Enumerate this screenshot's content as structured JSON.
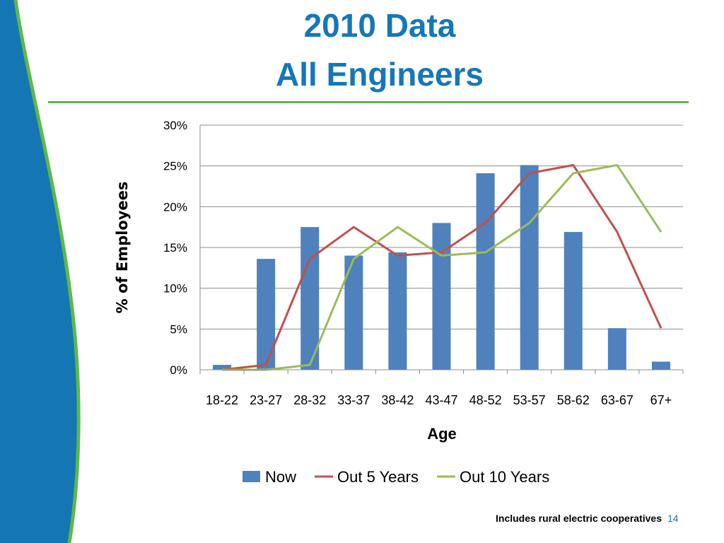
{
  "slide": {
    "title_line1": "2010 Data",
    "title_line2": "All Engineers",
    "footnote": "Includes rural electric cooperatives",
    "page_number": "14"
  },
  "colors": {
    "title": "#1677B8",
    "accent_rule": "#5DB84A",
    "bar_now": "#4F81BD",
    "line_5yr": "#C0504D",
    "line_10yr": "#9BBB59"
  },
  "chart_data": {
    "type": "bar",
    "title": "",
    "xlabel": "Age",
    "ylabel": "% of Employees",
    "categories": [
      "18-22",
      "23-27",
      "28-32",
      "33-37",
      "38-42",
      "43-47",
      "48-52",
      "53-57",
      "58-62",
      "63-67",
      "67+"
    ],
    "y_ticks": [
      "0%",
      "5%",
      "10%",
      "15%",
      "20%",
      "25%",
      "30%"
    ],
    "ylim": [
      0,
      30
    ],
    "grid": true,
    "legend_position": "bottom",
    "series": [
      {
        "name": "Now",
        "type": "bar",
        "values": [
          0.6,
          13.6,
          17.5,
          14.0,
          14.4,
          18.0,
          24.1,
          25.1,
          16.9,
          5.1,
          1.0
        ]
      },
      {
        "name": "Out 5 Years",
        "type": "line",
        "values": [
          0.0,
          0.6,
          13.6,
          17.5,
          14.0,
          14.4,
          18.0,
          24.1,
          25.1,
          16.9,
          5.1
        ]
      },
      {
        "name": "Out 10 Years",
        "type": "line",
        "values": [
          0.0,
          0.0,
          0.6,
          13.6,
          17.5,
          14.0,
          14.4,
          18.0,
          24.1,
          25.1,
          16.9
        ]
      }
    ]
  }
}
